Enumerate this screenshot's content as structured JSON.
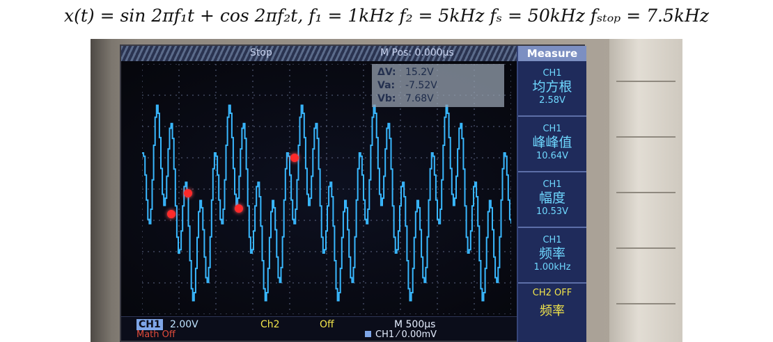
{
  "formula": "x(t) = sin 2πf₁t + cos 2πf₂t, f₁ = 1kHz f₂ = 5kHz fₛ = 50kHz fₛₜₒₚ = 7.5kHz",
  "top_bar": {
    "status": "Stop",
    "position": "M Pos: 0.000μs"
  },
  "cursor_readout": [
    {
      "label": "ΔV:",
      "value": "15.2V"
    },
    {
      "label": "Va:",
      "value": "-7.52V"
    },
    {
      "label": "Vb:",
      "value": "7.68V"
    }
  ],
  "measure_panel": {
    "title": "Measure",
    "items": [
      {
        "channel": "CH1",
        "name": "均方根",
        "value": "2.58V"
      },
      {
        "channel": "CH1",
        "name": "峰峰值",
        "value": "10.64V"
      },
      {
        "channel": "CH1",
        "name": "幅度",
        "value": "10.53V"
      },
      {
        "channel": "CH1",
        "name": "频率",
        "value": "1.00kHz"
      }
    ],
    "ch2_status": "CH2 OFF",
    "ch2_measure": "频率"
  },
  "bottom_bar": {
    "ch1_label": "CH1",
    "ch1_scale": "2.00V",
    "ch2_label": "Ch2",
    "ch2_state": "Off",
    "timebase": "M 500μs",
    "math_state": "Math Off",
    "trigger": "CH1  ⁄  0.00mV"
  },
  "colors": {
    "trace": "#39b8ff",
    "panel": "#1f2b5b",
    "panel_text": "#6fd8ff",
    "ch2": "#f3e64b",
    "laser": "#ff2a2a"
  }
}
